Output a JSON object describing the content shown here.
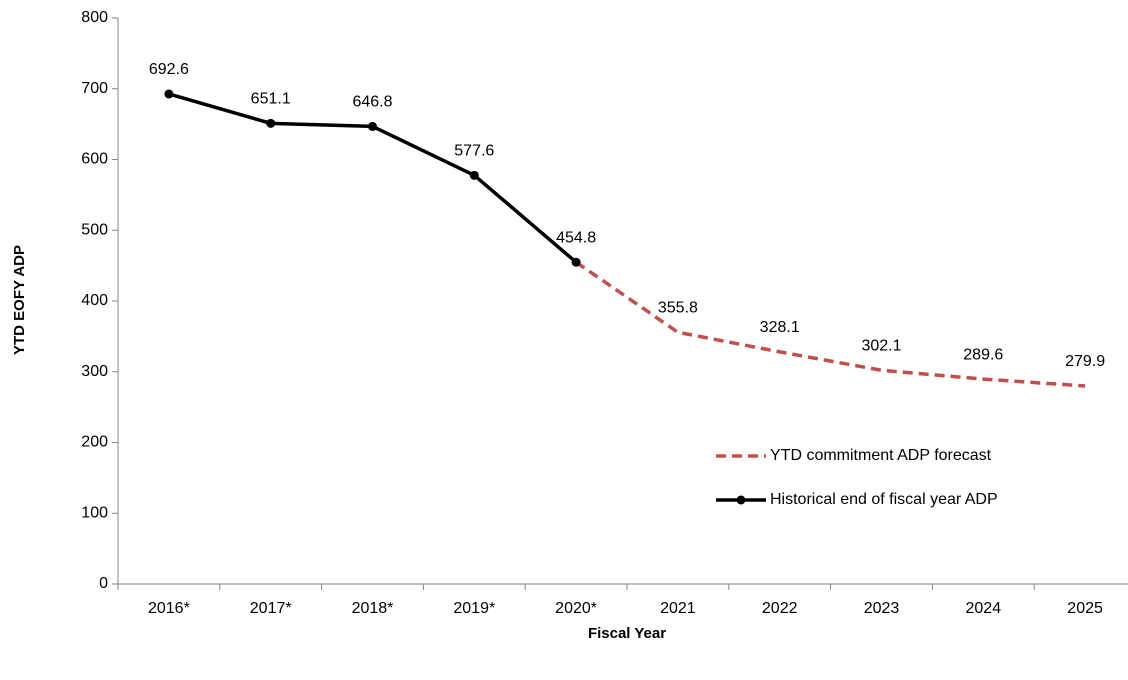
{
  "chart_data": {
    "type": "line",
    "x_label": "Fiscal Year",
    "y_label": "YTD EOFY ADP",
    "categories": [
      "2016*",
      "2017*",
      "2018*",
      "2019*",
      "2020*",
      "2021",
      "2022",
      "2023",
      "2024",
      "2025"
    ],
    "series": [
      {
        "name": "YTD commitment ADP forecast",
        "color": "#c0504d",
        "dashed": true,
        "markers": false,
        "values": [
          null,
          null,
          null,
          null,
          454.8,
          355.8,
          328.1,
          302.1,
          289.6,
          279.9
        ]
      },
      {
        "name": "Historical end of fiscal year ADP",
        "color": "#000000",
        "dashed": false,
        "markers": true,
        "values": [
          692.6,
          651.1,
          646.8,
          577.6,
          454.8,
          null,
          null,
          null,
          null,
          null
        ]
      }
    ],
    "ylim": [
      0,
      800
    ],
    "yticks": [
      0,
      100,
      200,
      300,
      400,
      500,
      600,
      700,
      800
    ],
    "grid": false,
    "legend": "right"
  }
}
